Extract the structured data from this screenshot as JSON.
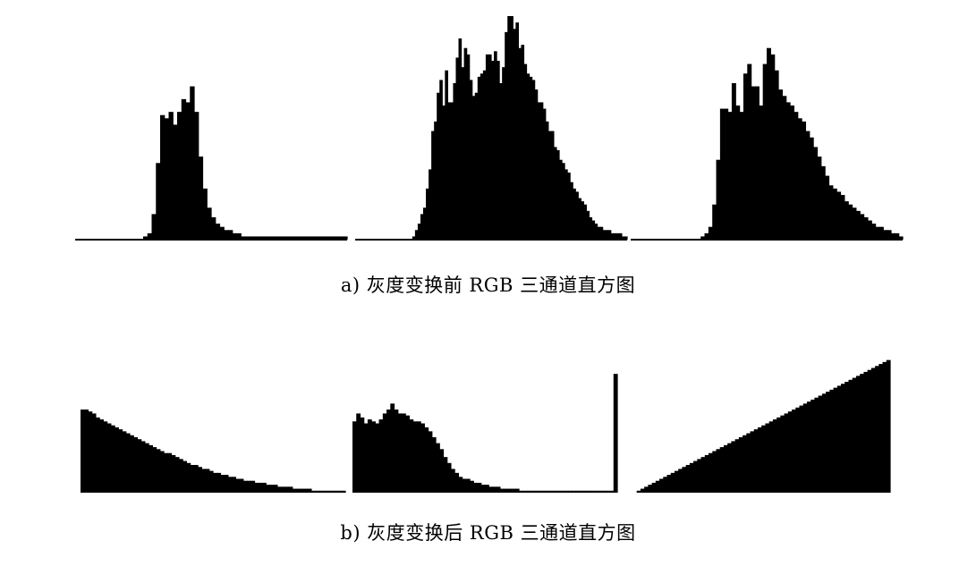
{
  "chart_data": [
    {
      "type": "bar",
      "panel": "a",
      "caption": "a)  灰度变换前 RGB 三通道直方图",
      "colors": {
        "bars": "#000000",
        "background": "#ffffff"
      },
      "grid": false,
      "series": [
        {
          "values": [
            0,
            0,
            0,
            0,
            0,
            0,
            0,
            0,
            0,
            0,
            0,
            0,
            0,
            0,
            0,
            0,
            1,
            2,
            8,
            24,
            39,
            38,
            40,
            36,
            40,
            44,
            43,
            48,
            40,
            26,
            16,
            10,
            7,
            5,
            4,
            3,
            3,
            2,
            2,
            1,
            1,
            1,
            1,
            1,
            1,
            1,
            1,
            1,
            1,
            1,
            1,
            1,
            1,
            1,
            1,
            1,
            1,
            1,
            1,
            1,
            1,
            1,
            1,
            1
          ]
        },
        {
          "values": [
            0,
            0,
            0,
            0,
            0,
            0,
            0,
            0,
            0,
            0,
            0,
            0,
            0,
            0,
            0,
            0,
            0,
            0,
            0,
            0,
            0,
            1,
            3,
            5,
            8,
            10,
            16,
            22,
            34,
            37,
            46,
            50,
            42,
            53,
            43,
            43,
            49,
            57,
            63,
            54,
            60,
            58,
            50,
            45,
            46,
            51,
            52,
            53,
            58,
            58,
            56,
            59,
            56,
            49,
            54,
            65,
            70,
            70,
            66,
            68,
            60,
            61,
            55,
            52,
            51,
            50,
            47,
            43,
            43,
            41,
            37,
            34,
            34,
            29,
            28,
            25,
            24,
            22,
            21,
            18,
            16,
            15,
            13,
            12,
            11,
            9,
            7,
            6,
            5,
            4,
            4,
            3,
            3,
            3,
            2,
            2,
            2,
            2,
            1,
            1
          ]
        },
        {
          "values": [
            0,
            0,
            0,
            0,
            0,
            0,
            0,
            0,
            0,
            0,
            0,
            0,
            0,
            0,
            0,
            0,
            0,
            0,
            1,
            2,
            4,
            11,
            25,
            41,
            41,
            40,
            49,
            42,
            40,
            52,
            55,
            48,
            48,
            42,
            55,
            60,
            58,
            53,
            47,
            45,
            43,
            42,
            40,
            38,
            37,
            34,
            32,
            29,
            26,
            23,
            20,
            17,
            16,
            15,
            14,
            12,
            11,
            10,
            9,
            8,
            7,
            6,
            5,
            4,
            4,
            3,
            3,
            2,
            2,
            1
          ]
        }
      ]
    },
    {
      "type": "bar",
      "panel": "b",
      "caption": "b)  灰度变换后 RGB 三通道直方图",
      "colors": {
        "bars": "#000000",
        "background": "#ffffff"
      },
      "grid": false,
      "series": [
        {
          "values": [
            42,
            42,
            41,
            40,
            38,
            37,
            36,
            35,
            34,
            33,
            32,
            31,
            30,
            29,
            28,
            27,
            26,
            25,
            24,
            23,
            22,
            21,
            20,
            20,
            19,
            18,
            17,
            16,
            15,
            14,
            14,
            13,
            12,
            12,
            11,
            10,
            10,
            9,
            9,
            8,
            8,
            7,
            7,
            6,
            6,
            6,
            5,
            5,
            5,
            4,
            4,
            4,
            3,
            3,
            3,
            3,
            2,
            2,
            2,
            2,
            2,
            1,
            1,
            1,
            1,
            1,
            1,
            1,
            1,
            1
          ]
        },
        {
          "values": [
            36,
            40,
            38,
            35,
            37,
            36,
            35,
            37,
            40,
            42,
            45,
            42,
            40,
            40,
            39,
            37,
            36,
            36,
            35,
            33,
            31,
            28,
            25,
            22,
            18,
            15,
            12,
            10,
            8,
            7,
            7,
            6,
            5,
            5,
            4,
            4,
            3,
            3,
            3,
            2,
            2,
            2,
            2,
            2,
            1,
            1,
            1,
            1,
            1,
            1,
            1,
            1,
            1,
            1,
            1,
            1,
            1,
            1,
            1,
            1,
            1,
            1,
            1,
            1,
            1,
            1,
            1,
            1,
            1,
            60
          ]
        },
        {
          "values": [
            0,
            0,
            0,
            1,
            2,
            3,
            4,
            5,
            6,
            7,
            8,
            9,
            10,
            11,
            12,
            13,
            14,
            15,
            16,
            17,
            18,
            19,
            20,
            21,
            22,
            23,
            24,
            25,
            26,
            27,
            28,
            29,
            30,
            31,
            32,
            33,
            34,
            35,
            36,
            37,
            38,
            39,
            40,
            41,
            42,
            43,
            44,
            45,
            46,
            47,
            48,
            49,
            50,
            51,
            52,
            53,
            54,
            55,
            56,
            57,
            58,
            59,
            60,
            61,
            62,
            63,
            64,
            65,
            66,
            67
          ]
        }
      ]
    }
  ]
}
